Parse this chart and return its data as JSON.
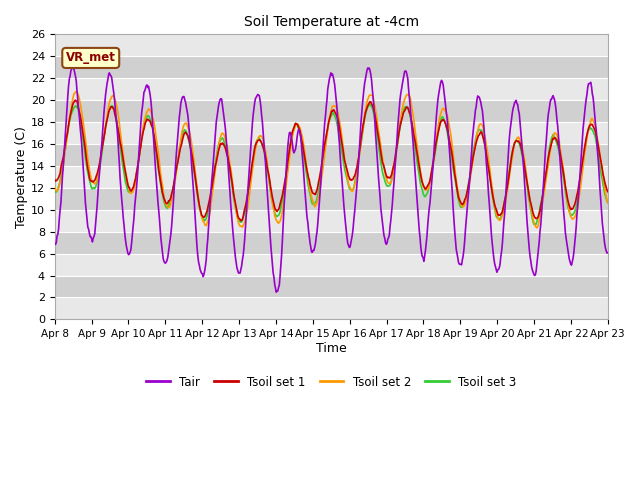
{
  "title": "Soil Temperature at -4cm",
  "xlabel": "Time",
  "ylabel": "Temperature (C)",
  "ylim": [
    0,
    26
  ],
  "yticks": [
    0,
    2,
    4,
    6,
    8,
    10,
    12,
    14,
    16,
    18,
    20,
    22,
    24,
    26
  ],
  "xtick_labels": [
    "Apr 8",
    "Apr 9",
    "Apr 10",
    "Apr 11",
    "Apr 12",
    "Apr 13",
    "Apr 14",
    "Apr 15",
    "Apr 16",
    "Apr 17",
    "Apr 18",
    "Apr 19",
    "Apr 20",
    "Apr 21",
    "Apr 22",
    "Apr 23"
  ],
  "colors": {
    "Tair": "#9900cc",
    "Tsoil1": "#cc0000",
    "Tsoil2": "#ff9900",
    "Tsoil3": "#33cc33"
  },
  "bg_color": "#ffffff",
  "plot_bg_light": "#e8e8e8",
  "plot_bg_dark": "#d0d0d0",
  "legend_label": "VR_met",
  "legend_labels": [
    "Tair",
    "Tsoil set 1",
    "Tsoil set 2",
    "Tsoil set 3"
  ]
}
